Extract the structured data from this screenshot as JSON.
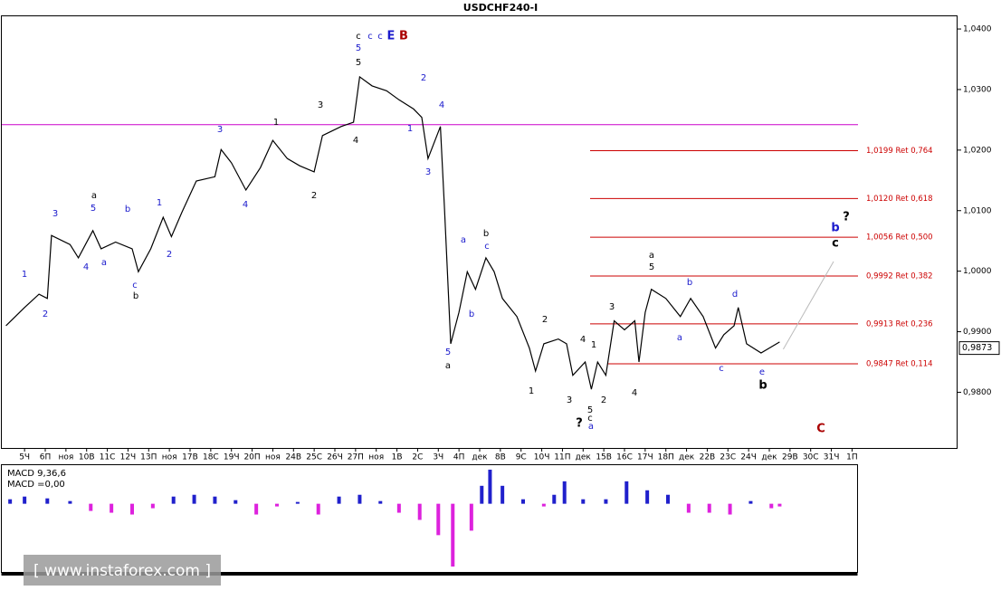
{
  "chart_data": {
    "type": "line",
    "title": "USDCHF240-I",
    "x": [
      -0.9,
      0,
      0.7,
      1.1,
      1.3,
      2.2,
      2.6,
      3.3,
      3.7,
      4.4,
      5.2,
      5.5,
      6.1,
      6.7,
      7.1,
      7.6,
      8.3,
      9.2,
      9.5,
      10.0,
      10.7,
      11.4,
      12.0,
      12.7,
      13.3,
      14.0,
      14.4,
      15.3,
      15.9,
      16.2,
      16.8,
      17.5,
      18.1,
      18.8,
      19.2,
      19.5,
      20.1,
      20.3,
      20.6,
      21.0,
      21.4,
      21.8,
      22.3,
      22.7,
      23.1,
      23.8,
      24.4,
      24.7,
      25.1,
      25.8,
      26.2,
      26.5,
      27.1,
      27.4,
      27.7,
      28.1,
      28.5,
      29.0,
      29.5,
      29.7,
      30.0,
      30.3,
      31.0,
      31.7,
      32.2,
      32.8,
      33.4,
      33.8,
      34.3,
      34.5,
      34.9,
      35.6,
      36.0,
      36.5
    ],
    "values": [
      0.991,
      0.994,
      0.9962,
      0.9955,
      1.0059,
      1.0044,
      1.0022,
      1.0067,
      1.0037,
      1.0048,
      1.0037,
      0.9999,
      1.0037,
      1.0089,
      1.0057,
      1.0097,
      1.0149,
      1.0156,
      1.0201,
      1.0179,
      1.0134,
      1.0171,
      1.0216,
      1.0186,
      1.0174,
      1.0164,
      1.0224,
      1.0239,
      1.0246,
      1.0321,
      1.0306,
      1.0298,
      1.0283,
      1.0268,
      1.0254,
      1.0186,
      1.0239,
      1.0104,
      0.988,
      0.9932,
      0.9999,
      0.997,
      1.0022,
      0.9999,
      0.9955,
      0.9925,
      0.9873,
      0.9835,
      0.988,
      0.9888,
      0.988,
      0.9828,
      0.985,
      0.9805,
      0.985,
      0.9828,
      0.9918,
      0.9903,
      0.9918,
      0.985,
      0.9932,
      0.997,
      0.9955,
      0.9925,
      0.9955,
      0.9925,
      0.9873,
      0.9895,
      0.991,
      0.994,
      0.988,
      0.9865,
      0.9873,
      0.9883
    ],
    "color": "#000000",
    "xlim": [
      -1.1,
      45.1
    ],
    "xticks": [
      {
        "value": 0,
        "label": "5Ч"
      },
      {
        "value": 1,
        "label": "6П"
      },
      {
        "value": 2,
        "label": "ноя"
      },
      {
        "value": 3,
        "label": "10В"
      },
      {
        "value": 4,
        "label": "11С"
      },
      {
        "value": 5,
        "label": "12Ч"
      },
      {
        "value": 6,
        "label": "13П"
      },
      {
        "value": 7,
        "label": "ноя"
      },
      {
        "value": 8,
        "label": "17В"
      },
      {
        "value": 9,
        "label": "18С"
      },
      {
        "value": 10,
        "label": "19Ч"
      },
      {
        "value": 11,
        "label": "20П"
      },
      {
        "value": 12,
        "label": "ноя"
      },
      {
        "value": 13,
        "label": "24В"
      },
      {
        "value": 14,
        "label": "25С"
      },
      {
        "value": 15,
        "label": "26Ч"
      },
      {
        "value": 16,
        "label": "27П"
      },
      {
        "value": 17,
        "label": "ноя"
      },
      {
        "value": 18,
        "label": "1В"
      },
      {
        "value": 19,
        "label": "2С"
      },
      {
        "value": 20,
        "label": "3Ч"
      },
      {
        "value": 21,
        "label": "4П"
      },
      {
        "value": 22,
        "label": "дек"
      },
      {
        "value": 23,
        "label": "8В"
      },
      {
        "value": 24,
        "label": "9С"
      },
      {
        "value": 25,
        "label": "10Ч"
      },
      {
        "value": 26,
        "label": "11П"
      },
      {
        "value": 27,
        "label": "дек"
      },
      {
        "value": 28,
        "label": "15В"
      },
      {
        "value": 29,
        "label": "16С"
      },
      {
        "value": 30,
        "label": "17Ч"
      },
      {
        "value": 31,
        "label": "18П"
      },
      {
        "value": 32,
        "label": "дек"
      },
      {
        "value": 33,
        "label": "22В"
      },
      {
        "value": 34,
        "label": "23С"
      },
      {
        "value": 35,
        "label": "24Ч"
      },
      {
        "value": 36,
        "label": "дек"
      },
      {
        "value": 37,
        "label": "29В"
      },
      {
        "value": 38,
        "label": "30С"
      },
      {
        "value": 39,
        "label": "31Ч"
      },
      {
        "value": 40,
        "label": "1П"
      }
    ],
    "ylim": [
      0.9708,
      1.0421
    ],
    "yticks": [
      {
        "value": 1.04,
        "label": "1,0400"
      },
      {
        "value": 1.03,
        "label": "1,0300"
      },
      {
        "value": 1.02,
        "label": "1,0200"
      },
      {
        "value": 1.01,
        "label": "1,0100"
      },
      {
        "value": 1.0,
        "label": "1,0000"
      },
      {
        "value": 0.99,
        "label": "0,9900"
      },
      {
        "value": 0.98,
        "label": "0,9800"
      }
    ],
    "last_price": {
      "value": 0.9873,
      "label": "0,9873"
    },
    "hline": {
      "value": 1.0242,
      "color": "#cc00cc"
    },
    "fib_color": "#cc0000",
    "fib_levels": [
      {
        "value": 1.0199,
        "label": "1,0199 Ret 0,764"
      },
      {
        "value": 1.012,
        "label": "1,0120 Ret 0,618"
      },
      {
        "value": 1.0056,
        "label": "1,0056 Ret 0,500"
      },
      {
        "value": 0.9992,
        "label": "0,9992 Ret 0,382"
      },
      {
        "value": 0.9913,
        "label": "0,9913 Ret 0,236"
      },
      {
        "value": 0.9847,
        "label": "0,9847 Ret 0,114"
      }
    ],
    "annotations": [
      {
        "text": "1",
        "color": "#1a1acc"
      },
      {
        "text": "2",
        "color": "#1a1acc"
      },
      {
        "text": "3",
        "color": "#1a1acc"
      },
      {
        "text": "4",
        "color": "#1a1acc"
      },
      {
        "text": "5",
        "color": "#1a1acc"
      },
      {
        "text": "a",
        "color": "#000000"
      },
      {
        "text": "a",
        "color": "#1a1acc"
      },
      {
        "text": "b",
        "color": "#1a1acc"
      },
      {
        "text": "c",
        "color": "#1a1acc"
      },
      {
        "text": "b",
        "color": "#000000"
      },
      {
        "text": "1",
        "color": "#1a1acc"
      },
      {
        "text": "2",
        "color": "#1a1acc"
      },
      {
        "text": "3",
        "color": "#1a1acc"
      },
      {
        "text": "4",
        "color": "#1a1acc"
      },
      {
        "text": "1",
        "color": "#000000"
      },
      {
        "text": "2",
        "color": "#000000"
      },
      {
        "text": "3",
        "color": "#000000"
      },
      {
        "text": "4",
        "color": "#000000"
      },
      {
        "text": "5",
        "color": "#000000"
      },
      {
        "text": "5",
        "color": "#1a1acc"
      },
      {
        "text": "c",
        "color": "#000000"
      },
      {
        "text": "c",
        "color": "#1a1acc"
      },
      {
        "text": "c",
        "color": "#1a1acc"
      },
      {
        "text": "E",
        "color": "#1a1acc"
      },
      {
        "text": "B",
        "color": "#aa0000"
      },
      {
        "text": "2",
        "color": "#1a1acc"
      },
      {
        "text": "1",
        "color": "#1a1acc"
      },
      {
        "text": "4",
        "color": "#1a1acc"
      },
      {
        "text": "3",
        "color": "#1a1acc"
      },
      {
        "text": "5",
        "color": "#1a1acc"
      },
      {
        "text": "a",
        "color": "#000000"
      },
      {
        "text": "a",
        "color": "#1a1acc"
      },
      {
        "text": "b",
        "color": "#000000"
      },
      {
        "text": "c",
        "color": "#1a1acc"
      },
      {
        "text": "b",
        "color": "#1a1acc"
      },
      {
        "text": "1",
        "color": "#000000"
      },
      {
        "text": "2",
        "color": "#000000"
      },
      {
        "text": "3",
        "color": "#000000"
      },
      {
        "text": "4",
        "color": "#000000"
      },
      {
        "text": "1",
        "color": "#000000"
      },
      {
        "text": "5",
        "color": "#000000"
      },
      {
        "text": "c",
        "color": "#000000"
      },
      {
        "text": "a",
        "color": "#1a1acc"
      },
      {
        "text": "?",
        "color": "#000000"
      },
      {
        "text": "2",
        "color": "#000000"
      },
      {
        "text": "3",
        "color": "#000000"
      },
      {
        "text": "4",
        "color": "#000000"
      },
      {
        "text": "a",
        "color": "#000000"
      },
      {
        "text": "5",
        "color": "#000000"
      },
      {
        "text": "b",
        "color": "#1a1acc"
      },
      {
        "text": "a",
        "color": "#1a1acc"
      },
      {
        "text": "c",
        "color": "#1a1acc"
      },
      {
        "text": "d",
        "color": "#1a1acc"
      },
      {
        "text": "e",
        "color": "#1a1acc"
      },
      {
        "text": "b",
        "color": "#000000"
      },
      {
        "text": "b",
        "color": "#1a1acc"
      },
      {
        "text": "?",
        "color": "#000000"
      },
      {
        "text": "c",
        "color": "#000000"
      },
      {
        "text": "C",
        "color": "#aa0000"
      }
    ],
    "macd": {
      "title": "MACD 9,36,6",
      "value_text": "MACD =0,00",
      "x": [
        -0.7,
        0,
        1.1,
        2.2,
        3.2,
        4.2,
        5.2,
        6.2,
        7.2,
        8.2,
        9.2,
        10.2,
        11.2,
        12.2,
        13.2,
        14.2,
        15.2,
        16.2,
        17.2,
        18.1,
        19.1,
        20.0,
        20.7,
        21.6,
        22.1,
        22.5,
        23.1,
        24.1,
        25.1,
        25.6,
        26.1,
        27.0,
        28.1,
        29.1,
        30.1,
        31.1,
        32.1,
        33.1,
        34.1,
        35.1,
        36.1,
        36.5
      ],
      "values": [
        0.0005,
        0.0008,
        0.0006,
        0.0003,
        -0.0008,
        -0.001,
        -0.0012,
        -0.0005,
        0.0008,
        0.001,
        0.0008,
        0.0004,
        -0.0012,
        -0.0003,
        0.0002,
        -0.0012,
        0.0008,
        0.001,
        0.0003,
        -0.001,
        -0.0018,
        -0.0035,
        -0.007,
        -0.003,
        0.002,
        0.0038,
        0.002,
        0.0005,
        -0.0003,
        0.001,
        0.0025,
        0.0005,
        0.0005,
        0.0025,
        0.0015,
        0.001,
        -0.001,
        -0.001,
        -0.0012,
        0.0003,
        -0.0005,
        -0.0003
      ],
      "ylim": [
        -0.0075,
        0.0042
      ],
      "pos_color": "#2020cc",
      "neg_color": "#dd22dd"
    },
    "watermark": "[ www.instaforex.com ]"
  }
}
